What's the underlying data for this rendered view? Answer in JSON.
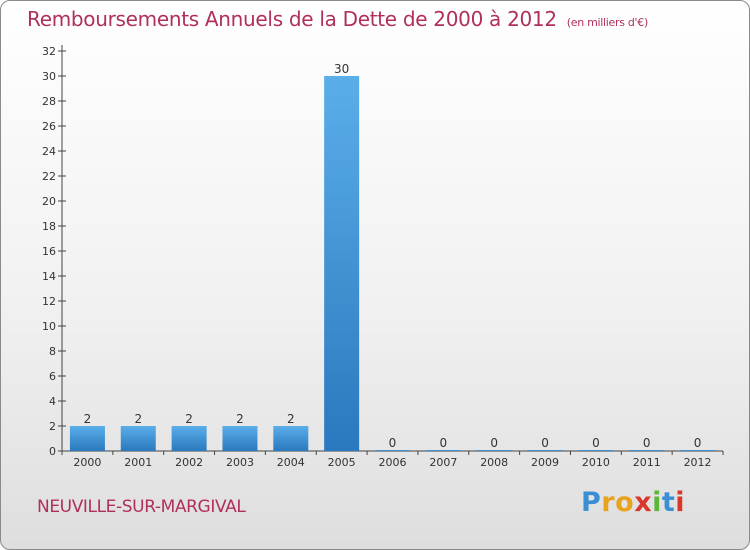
{
  "chart_data": {
    "type": "bar",
    "title": "Remboursements Annuels de la Dette de 2000 à 2012",
    "subtitle": "(en milliers d'€)",
    "categories": [
      "2000",
      "2001",
      "2002",
      "2003",
      "2004",
      "2005",
      "2006",
      "2007",
      "2008",
      "2009",
      "2010",
      "2011",
      "2012"
    ],
    "values": [
      2,
      2,
      2,
      2,
      2,
      30,
      0,
      0,
      0,
      0,
      0,
      0,
      0
    ],
    "value_labels": [
      "2",
      "2",
      "2",
      "2",
      "2",
      "30",
      "0",
      "0",
      "0",
      "0",
      "0",
      "0",
      "0"
    ],
    "ylim": [
      0,
      32
    ],
    "yticks": [
      "0",
      "2",
      "4",
      "6",
      "8",
      "10",
      "12",
      "14",
      "16",
      "18",
      "20",
      "22",
      "24",
      "26",
      "28",
      "30",
      "32"
    ],
    "xlabel": "",
    "ylabel": "",
    "grid": false,
    "bar_color": "#3d8fd6"
  },
  "footer": {
    "commune": "NEUVILLE-SUR-MARGIVAL",
    "brand_letters": [
      "P",
      "r",
      "o",
      "x",
      "i",
      "t",
      "i"
    ],
    "brand_colors": [
      "#3a8fd4",
      "#e8a21c",
      "#e8a21c",
      "#d9372b",
      "#5db53a",
      "#3a8fd4",
      "#d9372b"
    ]
  }
}
